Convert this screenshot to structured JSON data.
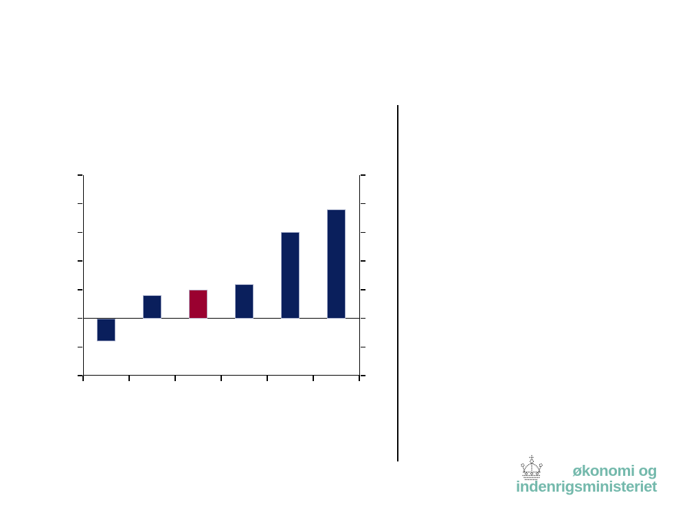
{
  "slide": {
    "background": "#ffffff"
  },
  "chart_data": {
    "type": "bar",
    "title": "",
    "xlabel": "",
    "ylabel": "",
    "categories": [
      "",
      "",
      "",
      "",
      "",
      ""
    ],
    "values": [
      -0.8,
      0.8,
      1.0,
      1.2,
      3.0,
      3.8
    ],
    "bar_colors": [
      "#0a1f5c",
      "#0a1f5c",
      "#9a0130",
      "#0a1f5c",
      "#0a1f5c",
      "#0a1f5c"
    ],
    "highlight_index": 2,
    "ylim": [
      -2,
      5
    ],
    "y_tick_step": 1,
    "x_tick_count": 7,
    "tick_labels_visible": false,
    "gridlines": false,
    "legend": "none",
    "axis_color": "#000000"
  },
  "divider": {
    "color": "#000000"
  },
  "logo": {
    "line1": "økonomi og",
    "line2": "indenrigsministeriet",
    "text_color": "#74b9ac",
    "crown_color": "#3d3d3d"
  }
}
